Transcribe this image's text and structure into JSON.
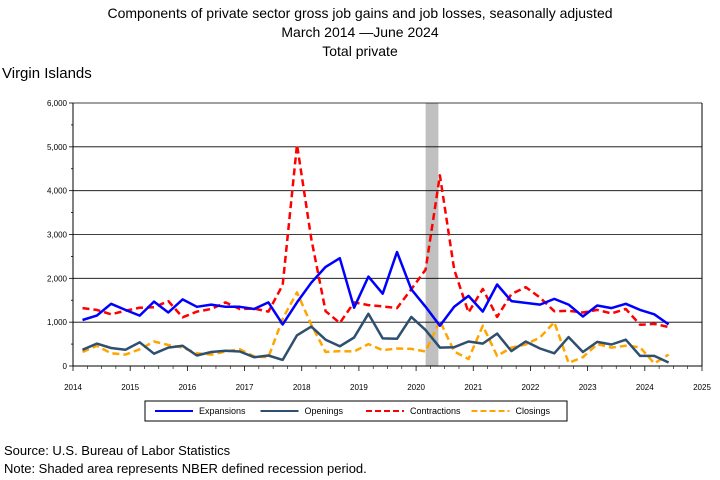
{
  "header": {
    "title_line1": "Components of private sector gross job gains and job losses, seasonally adjusted",
    "title_line2": "March 2014 —June 2024",
    "title_line3": "Total private"
  },
  "region_label": "Virgin Islands",
  "footer": {
    "source": "Source: U.S. Bureau of Labor Statistics",
    "note": "Note: Shaded area represents NBER defined recession period."
  },
  "chart_data": {
    "type": "line",
    "x": [
      "2014-03",
      "2014-06",
      "2014-09",
      "2014-12",
      "2015-03",
      "2015-06",
      "2015-09",
      "2015-12",
      "2016-03",
      "2016-06",
      "2016-09",
      "2016-12",
      "2017-03",
      "2017-06",
      "2017-09",
      "2017-12",
      "2018-03",
      "2018-06",
      "2018-09",
      "2018-12",
      "2019-03",
      "2019-06",
      "2019-09",
      "2019-12",
      "2020-03",
      "2020-06",
      "2020-09",
      "2020-12",
      "2021-03",
      "2021-06",
      "2021-09",
      "2021-12",
      "2022-03",
      "2022-06",
      "2022-09",
      "2022-12",
      "2023-03",
      "2023-06",
      "2023-09",
      "2023-12",
      "2024-03",
      "2024-06"
    ],
    "x_ticks": [
      "2014",
      "2015",
      "2016",
      "2017",
      "2018",
      "2019",
      "2020",
      "2021",
      "2022",
      "2023",
      "2024",
      "2025"
    ],
    "y_ticks": [
      "0",
      "1,000",
      "2,000",
      "3,000",
      "4,000",
      "5,000",
      "6,000"
    ],
    "ylim": [
      0,
      6000
    ],
    "xlim": [
      "2014-01",
      "2025-01"
    ],
    "grid": true,
    "legend_position": "bottom",
    "recession_shading": {
      "start": "2020-03",
      "end": "2020-04",
      "color": "#c0c0c0"
    },
    "series": [
      {
        "name": "Expansions",
        "color": "#0000ff",
        "style": "solid",
        "values": [
          1050,
          1150,
          1420,
          1280,
          1150,
          1470,
          1220,
          1520,
          1350,
          1400,
          1350,
          1350,
          1300,
          1450,
          950,
          1450,
          1900,
          2260,
          2460,
          1330,
          2040,
          1650,
          2600,
          1750,
          1350,
          920,
          1350,
          1600,
          1240,
          1860,
          1480,
          1440,
          1400,
          1530,
          1400,
          1130,
          1380,
          1320,
          1420,
          1280,
          1180,
          950
        ]
      },
      {
        "name": "Openings",
        "color": "#2f4f6f",
        "style": "solid",
        "values": [
          370,
          510,
          410,
          370,
          540,
          280,
          420,
          460,
          240,
          320,
          350,
          330,
          200,
          240,
          140,
          700,
          900,
          600,
          450,
          650,
          1190,
          630,
          620,
          1120,
          820,
          420,
          430,
          560,
          510,
          740,
          340,
          560,
          400,
          290,
          660,
          320,
          550,
          490,
          600,
          230,
          230,
          80
        ]
      },
      {
        "name": "Contractions",
        "color": "#ff0000",
        "style": "dashed",
        "values": [
          1320,
          1280,
          1180,
          1260,
          1330,
          1340,
          1480,
          1110,
          1240,
          1300,
          1450,
          1300,
          1310,
          1240,
          1850,
          5050,
          2900,
          1250,
          980,
          1450,
          1390,
          1360,
          1320,
          1750,
          2200,
          4350,
          2200,
          1220,
          1760,
          1120,
          1640,
          1800,
          1560,
          1250,
          1260,
          1220,
          1280,
          1200,
          1300,
          940,
          960,
          890
        ]
      },
      {
        "name": "Closings",
        "color": "#ffa500",
        "style": "dashed",
        "values": [
          320,
          460,
          290,
          260,
          380,
          560,
          480,
          420,
          290,
          260,
          330,
          380,
          220,
          200,
          1080,
          1680,
          940,
          320,
          340,
          330,
          500,
          360,
          400,
          390,
          330,
          1030,
          330,
          160,
          920,
          230,
          420,
          490,
          650,
          1000,
          70,
          200,
          500,
          420,
          460,
          430,
          60,
          260
        ]
      }
    ]
  }
}
